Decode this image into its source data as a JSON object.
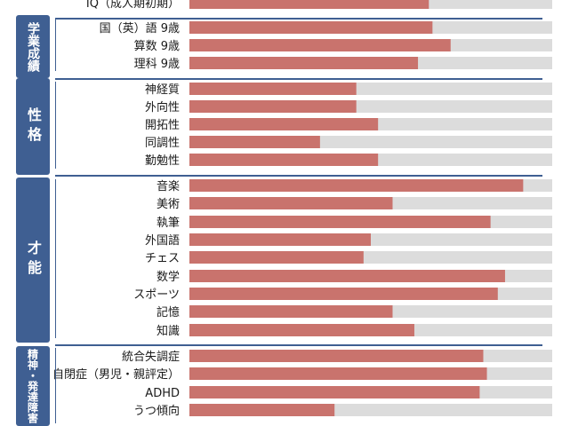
{
  "chart_data": {
    "type": "bar",
    "orientation": "horizontal",
    "xlim": [
      0,
      100
    ],
    "grid": false,
    "bar_color": "#c9736d",
    "track_color": "#dcdcdc",
    "group_color": "#3f5f92",
    "groups": [
      {
        "label": "",
        "items": [
          {
            "label": "IQ（成人期初期）",
            "value": 66
          }
        ]
      },
      {
        "label": "学業成績",
        "items": [
          {
            "label": "国（英）語 9歳",
            "value": 67
          },
          {
            "label": "算数 9歳",
            "value": 72
          },
          {
            "label": "理科 9歳",
            "value": 63
          }
        ]
      },
      {
        "label": "性格",
        "items": [
          {
            "label": "神経質",
            "value": 46
          },
          {
            "label": "外向性",
            "value": 46
          },
          {
            "label": "開拓性",
            "value": 52
          },
          {
            "label": "同調性",
            "value": 36
          },
          {
            "label": "勤勉性",
            "value": 52
          }
        ]
      },
      {
        "label": "才能",
        "items": [
          {
            "label": "音楽",
            "value": 92
          },
          {
            "label": "美術",
            "value": 56
          },
          {
            "label": "執筆",
            "value": 83
          },
          {
            "label": "外国語",
            "value": 50
          },
          {
            "label": "チェス",
            "value": 48
          },
          {
            "label": "数学",
            "value": 87
          },
          {
            "label": "スポーツ",
            "value": 85
          },
          {
            "label": "記憶",
            "value": 56
          },
          {
            "label": "知識",
            "value": 62
          }
        ]
      },
      {
        "label": "精神・発達障害",
        "items": [
          {
            "label": "統合失調症",
            "value": 81
          },
          {
            "label": "自閉症（男児・親評定）",
            "value": 82
          },
          {
            "label": "ADHD",
            "value": 80
          },
          {
            "label": "うつ傾向",
            "value": 40
          }
        ]
      }
    ]
  }
}
